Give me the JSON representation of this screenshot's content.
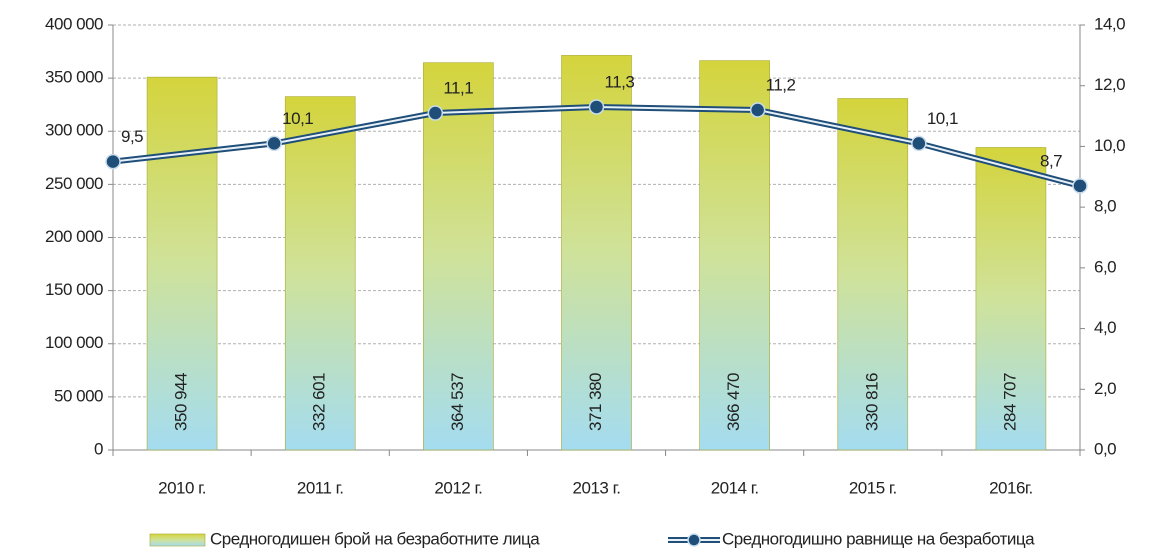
{
  "chart_data": {
    "type": "combo",
    "categories": [
      "2010 г.",
      "2011 г.",
      "2012 г.",
      "2013 г.",
      "2014 г.",
      "2015 г.",
      "2016г."
    ],
    "series": [
      {
        "name": "Средногодишен брой на безработните лица",
        "type": "bar",
        "color": "#d4d43c",
        "values": [
          350944,
          332601,
          364537,
          371380,
          366470,
          330816,
          284707
        ],
        "value_labels": [
          "350 944",
          "332 601",
          "364 537",
          "371 380",
          "366 470",
          "330 816",
          "284 707"
        ]
      },
      {
        "name": "Средногодишно равнище на безработица",
        "type": "line",
        "axis": "y2",
        "color": "#1f4e79",
        "values": [
          9.5,
          10.1,
          11.1,
          11.3,
          11.2,
          10.1,
          8.7
        ],
        "value_labels": [
          "9,5",
          "10,1",
          "11,1",
          "11,3",
          "11,2",
          "10,1",
          "8,7"
        ]
      }
    ],
    "ylim": [
      0,
      400000
    ],
    "yticks": [
      0,
      {
        "value": 50000,
        "label": "50 000"
      },
      {
        "value": 100000,
        "label": "100 000"
      },
      {
        "value": 150000,
        "label": "150 000"
      },
      {
        "value": 200000,
        "label": "200 000"
      },
      {
        "value": 250000,
        "label": "250 000"
      },
      {
        "value": 300000,
        "label": "300 000"
      },
      {
        "value": 350000,
        "label": "350 000"
      },
      {
        "value": 400000,
        "label": "400 000"
      }
    ],
    "y2lim": [
      0,
      14
    ],
    "y2ticks": [
      {
        "value": 0,
        "label": "0,0"
      },
      {
        "value": 2,
        "label": "2,0"
      },
      {
        "value": 4,
        "label": "4,0"
      },
      {
        "value": 6,
        "label": "6,0"
      },
      {
        "value": 8,
        "label": "8,0"
      },
      {
        "value": 10,
        "label": "10,0"
      },
      {
        "value": 12,
        "label": "12,0"
      },
      {
        "value": 14,
        "label": "14,0"
      }
    ],
    "grid": true,
    "legend": "bottom"
  }
}
